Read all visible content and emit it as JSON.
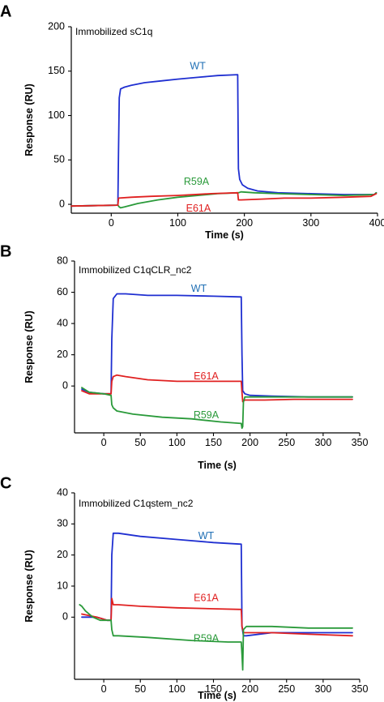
{
  "chart_data": [
    {
      "panel": "A",
      "type": "line",
      "annotation": "Immobilized sC1q",
      "xlabel": "Time (s)",
      "ylabel": "Response (RU)",
      "xlim": [
        -60,
        400
      ],
      "ylim": [
        -10,
        200
      ],
      "xticks": [
        0,
        100,
        200,
        300,
        400
      ],
      "yticks": [
        0,
        50,
        100,
        150,
        200
      ],
      "series": [
        {
          "name": "WT",
          "color": "#1f2fd1",
          "label_color": "#1f6fb5",
          "label_at": [
            130,
            155
          ],
          "points": [
            [
              -60,
              -2
            ],
            [
              9,
              -1
            ],
            [
              10,
              -1
            ],
            [
              11,
              60
            ],
            [
              12,
              120
            ],
            [
              14,
              130
            ],
            [
              20,
              132
            ],
            [
              30,
              134
            ],
            [
              50,
              137
            ],
            [
              75,
              139
            ],
            [
              100,
              141
            ],
            [
              130,
              143
            ],
            [
              160,
              145
            ],
            [
              190,
              146
            ],
            [
              191,
              40
            ],
            [
              193,
              28
            ],
            [
              197,
              22
            ],
            [
              205,
              18
            ],
            [
              220,
              15
            ],
            [
              250,
              13
            ],
            [
              300,
              12
            ],
            [
              350,
              11
            ],
            [
              395,
              11
            ],
            [
              398,
              13
            ]
          ]
        },
        {
          "name": "R59A",
          "color": "#2a9a3a",
          "label_color": "#2a9a3a",
          "label_at": [
            128,
            25
          ],
          "points": [
            [
              -60,
              -2
            ],
            [
              9,
              -1
            ],
            [
              10,
              -1
            ],
            [
              12,
              -3
            ],
            [
              14,
              -4
            ],
            [
              20,
              -3
            ],
            [
              40,
              1
            ],
            [
              70,
              5
            ],
            [
              100,
              8
            ],
            [
              130,
              10
            ],
            [
              160,
              12
            ],
            [
              190,
              13
            ],
            [
              191,
              13
            ],
            [
              195,
              14
            ],
            [
              215,
              13
            ],
            [
              250,
              12
            ],
            [
              300,
              11
            ],
            [
              350,
              10
            ],
            [
              395,
              11
            ],
            [
              398,
              13
            ]
          ]
        },
        {
          "name": "E61A",
          "color": "#e02020",
          "label_color": "#e02020",
          "label_at": [
            131,
            -5
          ],
          "points": [
            [
              -60,
              -2
            ],
            [
              9,
              -1
            ],
            [
              10,
              -1
            ],
            [
              11,
              7
            ],
            [
              30,
              8
            ],
            [
              60,
              9
            ],
            [
              100,
              10
            ],
            [
              150,
              12
            ],
            [
              190,
              13
            ],
            [
              191,
              5
            ],
            [
              195,
              5
            ],
            [
              230,
              6
            ],
            [
              260,
              7
            ],
            [
              300,
              7
            ],
            [
              350,
              8
            ],
            [
              390,
              9
            ],
            [
              398,
              12
            ]
          ]
        }
      ]
    },
    {
      "panel": "B",
      "type": "line",
      "annotation": "Immobilized C1qCLR_nc2",
      "xlabel": "Time (s)",
      "ylabel": "Response (RU)",
      "xlim": [
        -40,
        350
      ],
      "ylim": [
        -30,
        80
      ],
      "xticks": [
        0,
        50,
        100,
        150,
        200,
        250,
        300,
        350
      ],
      "yticks": [
        0,
        20,
        40,
        60,
        80
      ],
      "series": [
        {
          "name": "WT",
          "color": "#1f2fd1",
          "label_color": "#1f6fb5",
          "label_at": [
            130,
            62
          ],
          "points": [
            [
              -30,
              -2
            ],
            [
              -20,
              -4
            ],
            [
              0,
              -5
            ],
            [
              10,
              -5
            ],
            [
              11,
              30
            ],
            [
              13,
              56
            ],
            [
              18,
              59
            ],
            [
              30,
              59
            ],
            [
              60,
              58
            ],
            [
              100,
              58
            ],
            [
              150,
              57.5
            ],
            [
              188,
              57
            ],
            [
              189,
              20
            ],
            [
              190,
              -3
            ],
            [
              193,
              -5
            ],
            [
              200,
              -6
            ],
            [
              230,
              -6.5
            ],
            [
              280,
              -7
            ],
            [
              340,
              -7
            ]
          ]
        },
        {
          "name": "E61A",
          "color": "#e02020",
          "label_color": "#e02020",
          "label_at": [
            140,
            6
          ],
          "points": [
            [
              -30,
              -3
            ],
            [
              -20,
              -5
            ],
            [
              0,
              -5
            ],
            [
              10,
              -5
            ],
            [
              11,
              3
            ],
            [
              13,
              6
            ],
            [
              18,
              7
            ],
            [
              30,
              6
            ],
            [
              60,
              4
            ],
            [
              100,
              3
            ],
            [
              150,
              3
            ],
            [
              188,
              3
            ],
            [
              189,
              -4
            ],
            [
              190,
              -10
            ],
            [
              193,
              -9
            ],
            [
              220,
              -9
            ],
            [
              260,
              -8.5
            ],
            [
              340,
              -8.5
            ]
          ]
        },
        {
          "name": "R59A",
          "color": "#2a9a3a",
          "label_color": "#2a9a3a",
          "label_at": [
            140,
            -19
          ],
          "points": [
            [
              -30,
              -1
            ],
            [
              -20,
              -4
            ],
            [
              0,
              -5
            ],
            [
              10,
              -6
            ],
            [
              11,
              -12
            ],
            [
              13,
              -14
            ],
            [
              18,
              -16
            ],
            [
              40,
              -18
            ],
            [
              80,
              -20
            ],
            [
              120,
              -21
            ],
            [
              160,
              -23
            ],
            [
              188,
              -24
            ],
            [
              189,
              -27
            ],
            [
              190,
              -26
            ],
            [
              191,
              -10
            ],
            [
              193,
              -7
            ],
            [
              220,
              -7
            ],
            [
              280,
              -7
            ],
            [
              340,
              -7
            ]
          ]
        }
      ]
    },
    {
      "panel": "C",
      "type": "line",
      "annotation": "Immobilized C1qstem_nc2",
      "xlabel": "Time (s)",
      "ylabel": "Response (RU)",
      "xlim": [
        -40,
        350
      ],
      "ylim": [
        -20,
        40
      ],
      "xticks": [
        0,
        50,
        100,
        150,
        200,
        250,
        300,
        350
      ],
      "yticks": [
        0,
        10,
        20,
        30,
        40
      ],
      "series": [
        {
          "name": "WT",
          "color": "#1f2fd1",
          "label_color": "#1f6fb5",
          "label_at": [
            140,
            26
          ],
          "points": [
            [
              -30,
              0
            ],
            [
              -10,
              0
            ],
            [
              5,
              -1
            ],
            [
              10,
              -1
            ],
            [
              11,
              20
            ],
            [
              13,
              27
            ],
            [
              20,
              27
            ],
            [
              50,
              26
            ],
            [
              100,
              25
            ],
            [
              150,
              24
            ],
            [
              188,
              23.5
            ],
            [
              189,
              -3
            ],
            [
              191,
              -6
            ],
            [
              195,
              -6
            ],
            [
              230,
              -5
            ],
            [
              280,
              -5
            ],
            [
              340,
              -5
            ]
          ]
        },
        {
          "name": "E61A",
          "color": "#e02020",
          "label_color": "#e02020",
          "label_at": [
            140,
            6
          ],
          "points": [
            [
              -30,
              1
            ],
            [
              -10,
              0
            ],
            [
              5,
              -1
            ],
            [
              10,
              -1
            ],
            [
              11,
              6
            ],
            [
              13,
              4
            ],
            [
              20,
              4
            ],
            [
              50,
              3.5
            ],
            [
              100,
              3
            ],
            [
              150,
              2.7
            ],
            [
              188,
              2.5
            ],
            [
              189,
              -3
            ],
            [
              191,
              -5
            ],
            [
              195,
              -5
            ],
            [
              230,
              -5
            ],
            [
              280,
              -5.5
            ],
            [
              340,
              -6
            ]
          ]
        },
        {
          "name": "R59A",
          "color": "#2a9a3a",
          "label_color": "#2a9a3a",
          "label_at": [
            140,
            -7
          ],
          "points": [
            [
              -33,
              4
            ],
            [
              -30,
              3.5
            ],
            [
              -25,
              2
            ],
            [
              -15,
              0
            ],
            [
              -5,
              -1
            ],
            [
              10,
              -1
            ],
            [
              11,
              -4
            ],
            [
              13,
              -6
            ],
            [
              20,
              -6
            ],
            [
              60,
              -6.5
            ],
            [
              120,
              -7.5
            ],
            [
              170,
              -8
            ],
            [
              188,
              -8
            ],
            [
              189,
              -12
            ],
            [
              190,
              -17
            ],
            [
              191,
              -4
            ],
            [
              195,
              -3
            ],
            [
              230,
              -3
            ],
            [
              280,
              -3.5
            ],
            [
              340,
              -3.5
            ]
          ]
        }
      ]
    }
  ]
}
